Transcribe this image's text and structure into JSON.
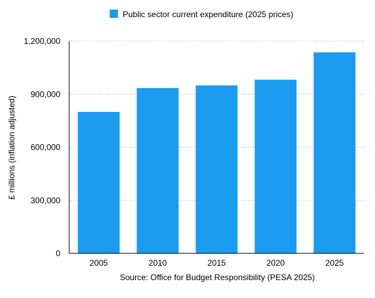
{
  "chart_data": {
    "type": "bar",
    "categories": [
      "2005",
      "2010",
      "2015",
      "2020",
      "2025"
    ],
    "series": [
      {
        "name": "Public sector current expenditure (2025 prices)",
        "values": [
          800000,
          935000,
          950000,
          982000,
          1137000
        ],
        "color": "#1a9cf0"
      }
    ],
    "ylabel": "£ millions (inflation adjusted)",
    "xlabel": "Source: Office for Budget Responsibility (PESA 2025)",
    "ylim": [
      0,
      1200000
    ],
    "yticks": [
      0,
      300000,
      600000,
      900000,
      1200000
    ],
    "ytick_labels": [
      "0",
      "300,000",
      "600,000",
      "900,000",
      "1,200,000"
    ],
    "grid": true,
    "gridline_style": "dotted",
    "legend_position": "top-center"
  }
}
